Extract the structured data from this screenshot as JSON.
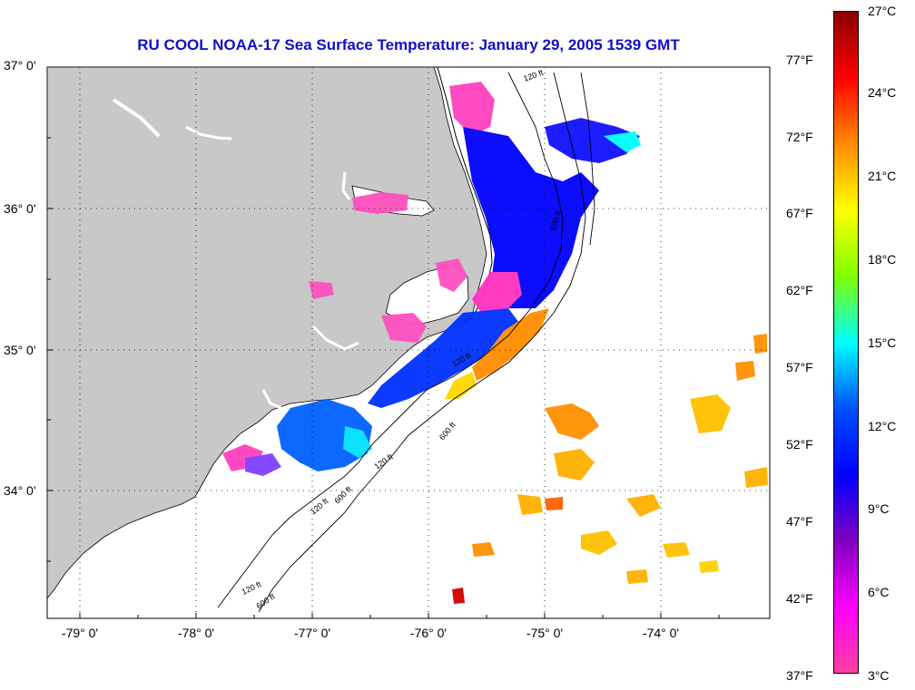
{
  "title": "RU COOL  NOAA-17  Sea Surface Temperature:  January 29, 2005 1539 GMT",
  "map": {
    "lat_ticks": [
      "37° 0'",
      "36° 0'",
      "35° 0'",
      "34° 0'"
    ],
    "lon_ticks": [
      "-79° 0'",
      "-78° 0'",
      "-77° 0'",
      "-76° 0'",
      "-75° 0'",
      "-74° 0'"
    ],
    "contour_labels": [
      "120 ft",
      "600 ft",
      "120 ft",
      "600 ft",
      "120 ft",
      "600 ft",
      "120 ft",
      "120 ft",
      "600 ft"
    ],
    "colors": {
      "land": "#c8c8c8",
      "ocean": "#ffffff",
      "grid": "#000000"
    }
  },
  "colorbar": {
    "fahrenheit": [
      "77°F",
      "72°F",
      "67°F",
      "62°F",
      "57°F",
      "52°F",
      "47°F",
      "42°F",
      "37°F"
    ],
    "celsius": [
      "27°C",
      "24°C",
      "21°C",
      "18°C",
      "15°C",
      "12°C",
      "9°C",
      "6°C",
      "3°C"
    ],
    "gradient": [
      "#8b0000",
      "#ff0000",
      "#ff8c00",
      "#ffff00",
      "#7fff00",
      "#00ffff",
      "#0050ff",
      "#0000ff",
      "#8000c0",
      "#ff00ff",
      "#ff40a0"
    ]
  }
}
